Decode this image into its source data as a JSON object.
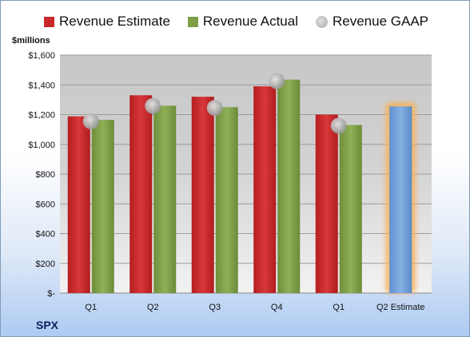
{
  "chart_data": {
    "type": "bar",
    "units_label": "$millions",
    "ticker": "SPX",
    "categories": [
      "Q1",
      "Q2",
      "Q3",
      "Q4",
      "Q1",
      "Q2 Estimate"
    ],
    "series": [
      {
        "name": "Revenue Estimate",
        "type": "bar",
        "color": "#c8282a",
        "values": [
          1188,
          1330,
          1320,
          1390,
          1200,
          null
        ]
      },
      {
        "name": "Revenue Actual",
        "type": "bar",
        "color": "#7f9f48",
        "values": [
          1165,
          1260,
          1250,
          1435,
          1130,
          null
        ]
      },
      {
        "name": "Revenue GAAP",
        "type": "marker",
        "color": "#b8b8b8",
        "values": [
          1155,
          1258,
          1245,
          1425,
          1125,
          null
        ]
      }
    ],
    "forecast": {
      "category": "Q2 Estimate",
      "value": 1255,
      "color": "#6f9fd8",
      "glow": "#f5b45a"
    },
    "ylim": [
      0,
      1600
    ],
    "yticks": [
      0,
      200,
      400,
      600,
      800,
      1000,
      1200,
      1400,
      1600
    ],
    "ytick_labels": [
      "$-",
      "$200",
      "$400",
      "$600",
      "$800",
      "$1,000",
      "$1,200",
      "$1,400",
      "$1,600"
    ],
    "grid": true,
    "legend": "top"
  }
}
